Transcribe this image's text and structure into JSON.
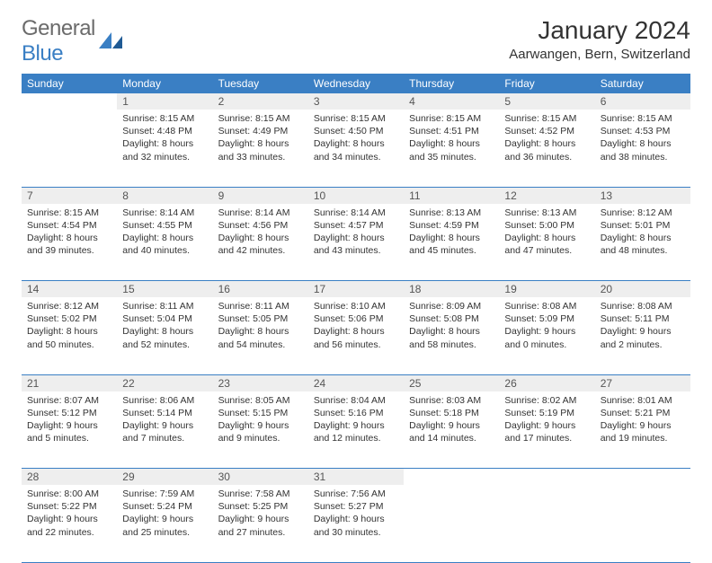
{
  "logo": {
    "text1": "General",
    "text2": "Blue"
  },
  "title": "January 2024",
  "location": "Aarwangen, Bern, Switzerland",
  "colors": {
    "accent": "#3a7fc4",
    "daynum_bg": "#eeeeee",
    "text": "#333333",
    "logo_gray": "#6b6b6b"
  },
  "weekdays": [
    "Sunday",
    "Monday",
    "Tuesday",
    "Wednesday",
    "Thursday",
    "Friday",
    "Saturday"
  ],
  "weeks": [
    [
      null,
      {
        "n": "1",
        "sr": "Sunrise: 8:15 AM",
        "ss": "Sunset: 4:48 PM",
        "d1": "Daylight: 8 hours",
        "d2": "and 32 minutes."
      },
      {
        "n": "2",
        "sr": "Sunrise: 8:15 AM",
        "ss": "Sunset: 4:49 PM",
        "d1": "Daylight: 8 hours",
        "d2": "and 33 minutes."
      },
      {
        "n": "3",
        "sr": "Sunrise: 8:15 AM",
        "ss": "Sunset: 4:50 PM",
        "d1": "Daylight: 8 hours",
        "d2": "and 34 minutes."
      },
      {
        "n": "4",
        "sr": "Sunrise: 8:15 AM",
        "ss": "Sunset: 4:51 PM",
        "d1": "Daylight: 8 hours",
        "d2": "and 35 minutes."
      },
      {
        "n": "5",
        "sr": "Sunrise: 8:15 AM",
        "ss": "Sunset: 4:52 PM",
        "d1": "Daylight: 8 hours",
        "d2": "and 36 minutes."
      },
      {
        "n": "6",
        "sr": "Sunrise: 8:15 AM",
        "ss": "Sunset: 4:53 PM",
        "d1": "Daylight: 8 hours",
        "d2": "and 38 minutes."
      }
    ],
    [
      {
        "n": "7",
        "sr": "Sunrise: 8:15 AM",
        "ss": "Sunset: 4:54 PM",
        "d1": "Daylight: 8 hours",
        "d2": "and 39 minutes."
      },
      {
        "n": "8",
        "sr": "Sunrise: 8:14 AM",
        "ss": "Sunset: 4:55 PM",
        "d1": "Daylight: 8 hours",
        "d2": "and 40 minutes."
      },
      {
        "n": "9",
        "sr": "Sunrise: 8:14 AM",
        "ss": "Sunset: 4:56 PM",
        "d1": "Daylight: 8 hours",
        "d2": "and 42 minutes."
      },
      {
        "n": "10",
        "sr": "Sunrise: 8:14 AM",
        "ss": "Sunset: 4:57 PM",
        "d1": "Daylight: 8 hours",
        "d2": "and 43 minutes."
      },
      {
        "n": "11",
        "sr": "Sunrise: 8:13 AM",
        "ss": "Sunset: 4:59 PM",
        "d1": "Daylight: 8 hours",
        "d2": "and 45 minutes."
      },
      {
        "n": "12",
        "sr": "Sunrise: 8:13 AM",
        "ss": "Sunset: 5:00 PM",
        "d1": "Daylight: 8 hours",
        "d2": "and 47 minutes."
      },
      {
        "n": "13",
        "sr": "Sunrise: 8:12 AM",
        "ss": "Sunset: 5:01 PM",
        "d1": "Daylight: 8 hours",
        "d2": "and 48 minutes."
      }
    ],
    [
      {
        "n": "14",
        "sr": "Sunrise: 8:12 AM",
        "ss": "Sunset: 5:02 PM",
        "d1": "Daylight: 8 hours",
        "d2": "and 50 minutes."
      },
      {
        "n": "15",
        "sr": "Sunrise: 8:11 AM",
        "ss": "Sunset: 5:04 PM",
        "d1": "Daylight: 8 hours",
        "d2": "and 52 minutes."
      },
      {
        "n": "16",
        "sr": "Sunrise: 8:11 AM",
        "ss": "Sunset: 5:05 PM",
        "d1": "Daylight: 8 hours",
        "d2": "and 54 minutes."
      },
      {
        "n": "17",
        "sr": "Sunrise: 8:10 AM",
        "ss": "Sunset: 5:06 PM",
        "d1": "Daylight: 8 hours",
        "d2": "and 56 minutes."
      },
      {
        "n": "18",
        "sr": "Sunrise: 8:09 AM",
        "ss": "Sunset: 5:08 PM",
        "d1": "Daylight: 8 hours",
        "d2": "and 58 minutes."
      },
      {
        "n": "19",
        "sr": "Sunrise: 8:08 AM",
        "ss": "Sunset: 5:09 PM",
        "d1": "Daylight: 9 hours",
        "d2": "and 0 minutes."
      },
      {
        "n": "20",
        "sr": "Sunrise: 8:08 AM",
        "ss": "Sunset: 5:11 PM",
        "d1": "Daylight: 9 hours",
        "d2": "and 2 minutes."
      }
    ],
    [
      {
        "n": "21",
        "sr": "Sunrise: 8:07 AM",
        "ss": "Sunset: 5:12 PM",
        "d1": "Daylight: 9 hours",
        "d2": "and 5 minutes."
      },
      {
        "n": "22",
        "sr": "Sunrise: 8:06 AM",
        "ss": "Sunset: 5:14 PM",
        "d1": "Daylight: 9 hours",
        "d2": "and 7 minutes."
      },
      {
        "n": "23",
        "sr": "Sunrise: 8:05 AM",
        "ss": "Sunset: 5:15 PM",
        "d1": "Daylight: 9 hours",
        "d2": "and 9 minutes."
      },
      {
        "n": "24",
        "sr": "Sunrise: 8:04 AM",
        "ss": "Sunset: 5:16 PM",
        "d1": "Daylight: 9 hours",
        "d2": "and 12 minutes."
      },
      {
        "n": "25",
        "sr": "Sunrise: 8:03 AM",
        "ss": "Sunset: 5:18 PM",
        "d1": "Daylight: 9 hours",
        "d2": "and 14 minutes."
      },
      {
        "n": "26",
        "sr": "Sunrise: 8:02 AM",
        "ss": "Sunset: 5:19 PM",
        "d1": "Daylight: 9 hours",
        "d2": "and 17 minutes."
      },
      {
        "n": "27",
        "sr": "Sunrise: 8:01 AM",
        "ss": "Sunset: 5:21 PM",
        "d1": "Daylight: 9 hours",
        "d2": "and 19 minutes."
      }
    ],
    [
      {
        "n": "28",
        "sr": "Sunrise: 8:00 AM",
        "ss": "Sunset: 5:22 PM",
        "d1": "Daylight: 9 hours",
        "d2": "and 22 minutes."
      },
      {
        "n": "29",
        "sr": "Sunrise: 7:59 AM",
        "ss": "Sunset: 5:24 PM",
        "d1": "Daylight: 9 hours",
        "d2": "and 25 minutes."
      },
      {
        "n": "30",
        "sr": "Sunrise: 7:58 AM",
        "ss": "Sunset: 5:25 PM",
        "d1": "Daylight: 9 hours",
        "d2": "and 27 minutes."
      },
      {
        "n": "31",
        "sr": "Sunrise: 7:56 AM",
        "ss": "Sunset: 5:27 PM",
        "d1": "Daylight: 9 hours",
        "d2": "and 30 minutes."
      },
      null,
      null,
      null
    ]
  ]
}
